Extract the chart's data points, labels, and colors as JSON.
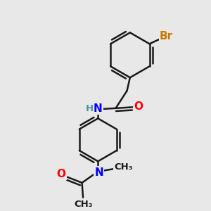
{
  "bg_color": "#e8e8e8",
  "bond_color": "#1a1a1a",
  "bond_width": 1.8,
  "dbl_sep": 0.13,
  "atom_colors": {
    "Br": "#cc7700",
    "N": "#0000ff",
    "O": "#ff0000",
    "H": "#4a9090",
    "C": "#1a1a1a"
  },
  "fs_main": 11,
  "fs_small": 9.5
}
